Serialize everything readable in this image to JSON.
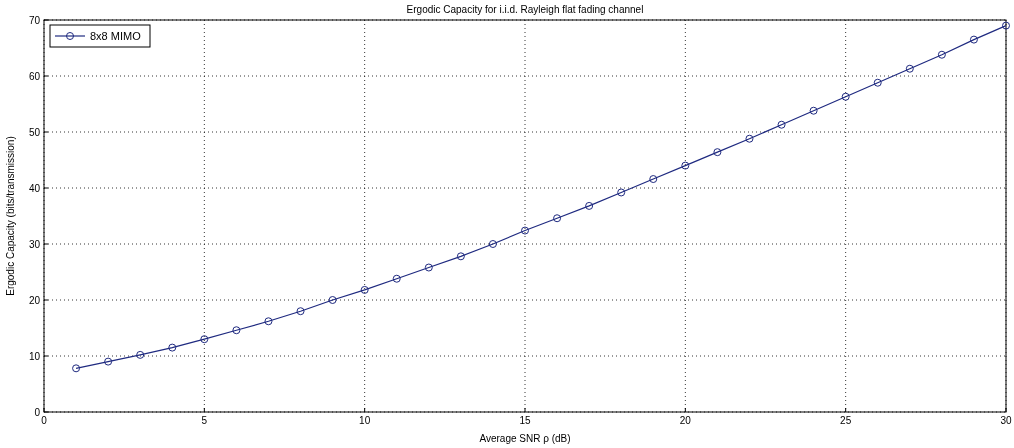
{
  "chart_data": {
    "type": "line",
    "title": "Ergodic Capacity for i.i.d. Rayleigh flat fading channel",
    "xlabel": "Average SNR ρ (dB)",
    "ylabel": "Ergodic Capacity (bits/transmission)",
    "x": [
      1,
      2,
      3,
      4,
      5,
      6,
      7,
      8,
      9,
      10,
      11,
      12,
      13,
      14,
      15,
      16,
      17,
      18,
      19,
      20,
      21,
      22,
      23,
      24,
      25,
      26,
      27,
      28,
      29,
      30
    ],
    "series": [
      {
        "name": "8x8 MIMO",
        "color": "#1f2a80",
        "values": [
          7.8,
          9,
          10.2,
          11.5,
          13,
          14.6,
          16.2,
          18,
          20,
          21.8,
          23.8,
          25.8,
          27.8,
          30,
          32.4,
          34.6,
          36.8,
          39.2,
          41.6,
          44,
          46.4,
          48.8,
          51.3,
          53.8,
          56.3,
          58.8,
          61.3,
          63.8,
          66.5,
          69
        ]
      }
    ],
    "xlim": [
      0,
      30
    ],
    "xticks": [
      0,
      5,
      10,
      15,
      20,
      25,
      30
    ],
    "ylim": [
      0,
      70
    ],
    "yticks": [
      0,
      10,
      20,
      30,
      40,
      50,
      60,
      70
    ],
    "grid": true,
    "legend": "top left",
    "marker": "circle",
    "line_style": "solid"
  }
}
